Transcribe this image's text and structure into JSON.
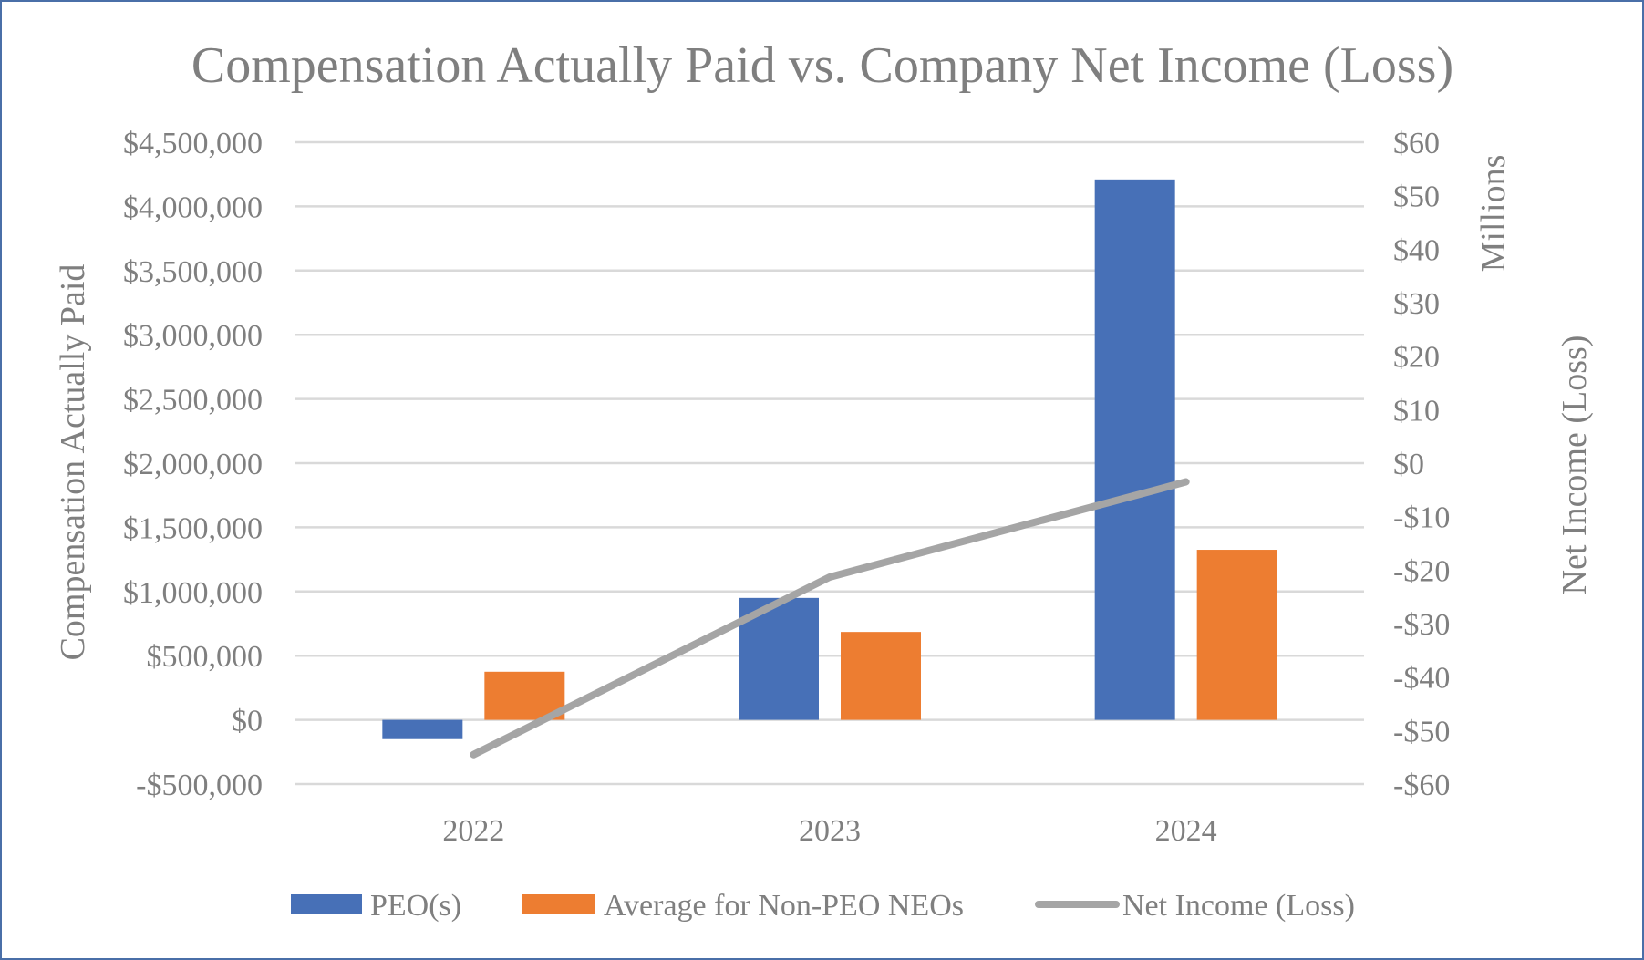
{
  "chart_data": {
    "type": "bar",
    "title": "Compensation Actually Paid vs. Company Net Income (Loss)",
    "categories": [
      "2022",
      "2023",
      "2024"
    ],
    "series": [
      {
        "name": "PEO(s)",
        "type": "bar",
        "axis": "left",
        "color": "#4770b7",
        "values": [
          -150000,
          950000,
          4210000
        ]
      },
      {
        "name": "Average for Non-PEO NEOs",
        "type": "bar",
        "axis": "left",
        "color": "#ed7d31",
        "values": [
          375000,
          685000,
          1325000
        ]
      },
      {
        "name": "Net Income (Loss)",
        "type": "line",
        "axis": "right",
        "color": "#a5a5a5",
        "values": [
          -54.5,
          -21.3,
          -3.5
        ]
      }
    ],
    "ylabel": "Compensation Actually Paid",
    "y2label": "Net Income (Loss)",
    "y2unit_label": "Millions",
    "ylim": [
      -500000,
      4500000
    ],
    "y2lim": [
      -60,
      60
    ],
    "yticks": [
      {
        "value": 4500000,
        "label": "$4,500,000"
      },
      {
        "value": 4000000,
        "label": "$4,000,000"
      },
      {
        "value": 3500000,
        "label": "$3,500,000"
      },
      {
        "value": 3000000,
        "label": "$3,000,000"
      },
      {
        "value": 2500000,
        "label": "$2,500,000"
      },
      {
        "value": 2000000,
        "label": "$2,000,000"
      },
      {
        "value": 1500000,
        "label": "$1,500,000"
      },
      {
        "value": 1000000,
        "label": "$1,000,000"
      },
      {
        "value": 500000,
        "label": "$500,000"
      },
      {
        "value": 0,
        "label": "$0"
      },
      {
        "value": -500000,
        "label": "-$500,000"
      }
    ],
    "y2ticks": [
      {
        "value": 60,
        "label": "$60"
      },
      {
        "value": 50,
        "label": "$50"
      },
      {
        "value": 40,
        "label": "$40"
      },
      {
        "value": 30,
        "label": "$30"
      },
      {
        "value": 20,
        "label": "$20"
      },
      {
        "value": 10,
        "label": "$10"
      },
      {
        "value": 0,
        "label": "$0"
      },
      {
        "value": -10,
        "label": "-$10"
      },
      {
        "value": -20,
        "label": "-$20"
      },
      {
        "value": -30,
        "label": "-$30"
      },
      {
        "value": -40,
        "label": "-$40"
      },
      {
        "value": -50,
        "label": "-$50"
      },
      {
        "value": -60,
        "label": "-$60"
      }
    ],
    "grid": true,
    "gridColor": "#d9d9d9",
    "textColor": "#7f7f7f",
    "frameColor": "#4a6fa8",
    "legend_position": "bottom"
  }
}
